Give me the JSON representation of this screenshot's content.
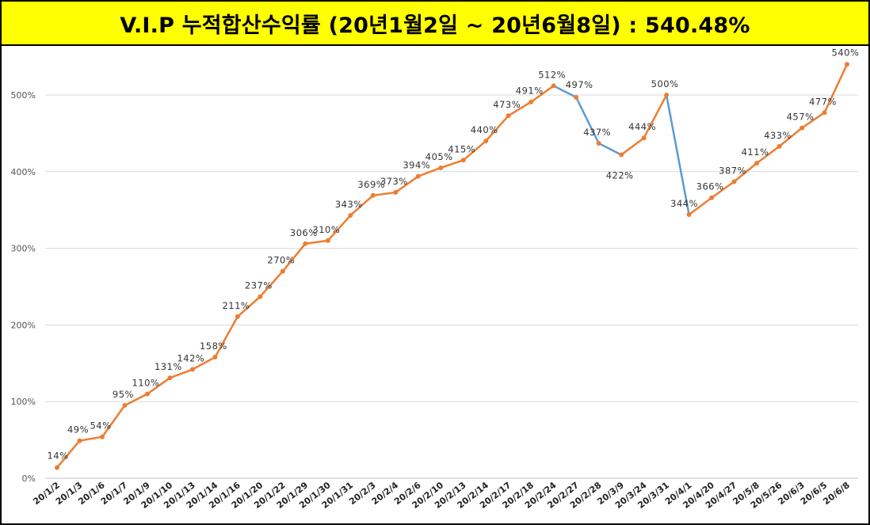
{
  "chart_data": {
    "type": "line",
    "title": "V.I.P 누적합산수익률 (20년1월2일 ~ 20년6월8일) : 540.48%",
    "y_ticks": [
      "0%",
      "100%",
      "200%",
      "300%",
      "400%",
      "500%"
    ],
    "ylim": [
      0,
      560
    ],
    "grid": true,
    "legend": "none",
    "colors": {
      "up": "#ed7d31",
      "down": "#5b9bd5",
      "title_bg": "#ffff00"
    },
    "categories": [
      "20/1/2",
      "20/1/3",
      "20/1/6",
      "20/1/7",
      "20/1/9",
      "20/1/10",
      "20/1/13",
      "20/1/14",
      "20/1/16",
      "20/1/20",
      "20/1/22",
      "20/1/29",
      "20/1/30",
      "20/1/31",
      "20/2/3",
      "20/2/4",
      "20/2/6",
      "20/2/10",
      "20/2/13",
      "20/2/14",
      "20/2/17",
      "20/2/18",
      "20/2/24",
      "20/2/27",
      "20/2/28",
      "20/3/9",
      "20/3/24",
      "20/3/31",
      "20/4/1",
      "20/4/20",
      "20/4/27",
      "20/5/8",
      "20/5/26",
      "20/6/3",
      "20/6/5",
      "20/6/8"
    ],
    "values": [
      14,
      49,
      54,
      95,
      110,
      131,
      142,
      158,
      211,
      237,
      270,
      306,
      310,
      343,
      369,
      373,
      394,
      405,
      415,
      440,
      473,
      491,
      512,
      497,
      437,
      422,
      444,
      500,
      344,
      366,
      387,
      411,
      433,
      457,
      477,
      540
    ],
    "data_labels": [
      "14%",
      "49%",
      "54%",
      "95%",
      "110%",
      "131%",
      "142%",
      "158%",
      "211%",
      "237%",
      "270%",
      "306%",
      "310%",
      "343%",
      "369%",
      "373%",
      "394%",
      "405%",
      "415%",
      "440%",
      "473%",
      "491%",
      "512%",
      "497%",
      "437%",
      "422%",
      "444%",
      "500%",
      "344%",
      "366%",
      "387%",
      "411%",
      "433%",
      "457%",
      "477%",
      "540%"
    ]
  }
}
